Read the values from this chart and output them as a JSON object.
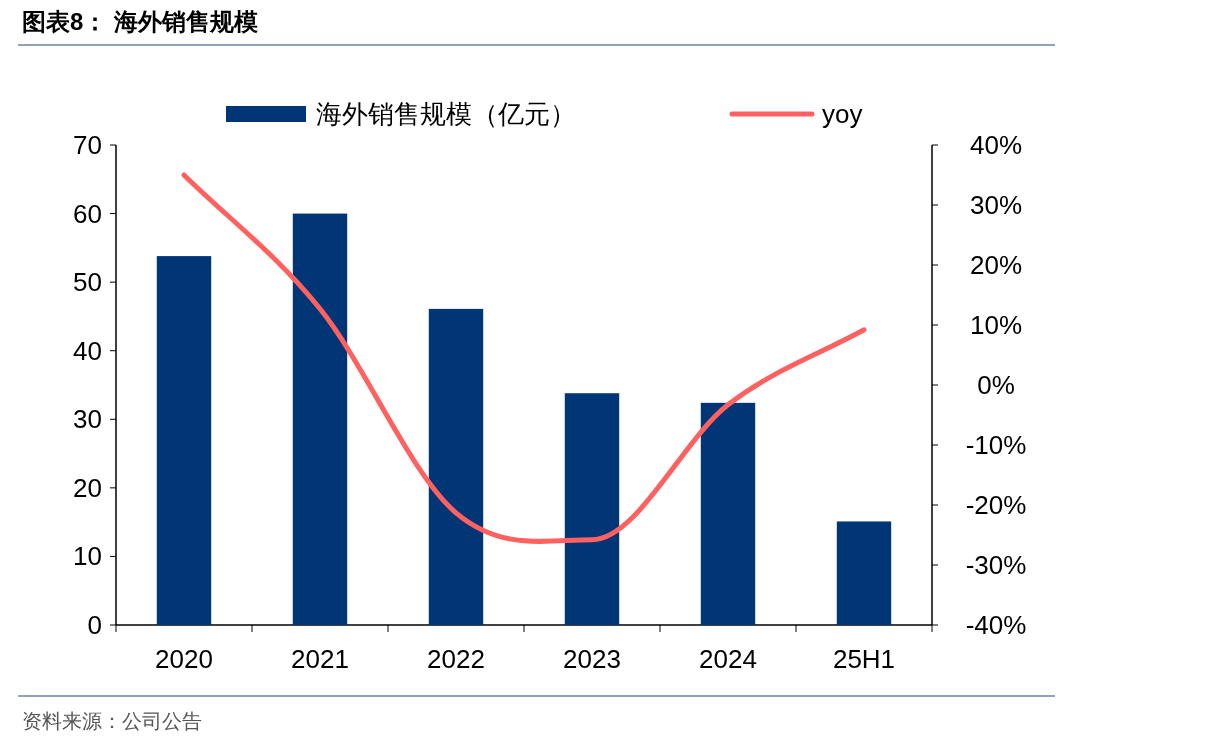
{
  "chart_data": {
    "type": "bar",
    "title": "图表8： 海外销售规模",
    "categories": [
      "2020",
      "2021",
      "2022",
      "2023",
      "2024",
      "25H1"
    ],
    "series": [
      {
        "name": "海外销售规模（亿元）",
        "color": "#003676",
        "values": [
          53.8,
          60,
          46.1,
          33.8,
          32.4,
          15.1
        ]
      },
      {
        "name": "yoy",
        "type": "line",
        "axis": "y2",
        "color": "#ff6161",
        "values": [
          35,
          12.7,
          -21.3,
          -25.8,
          -3.3,
          9.2
        ]
      }
    ],
    "ylim": [
      0,
      70
    ],
    "yticks": [
      0,
      10,
      20,
      30,
      40,
      50,
      60,
      70
    ],
    "y2lim": [
      -40,
      40
    ],
    "y2ticks": [
      {
        "value": -40,
        "label": "-40%"
      },
      {
        "value": -30,
        "label": "-30%"
      },
      {
        "value": -20,
        "label": "-20%"
      },
      {
        "value": -10,
        "label": "-10%"
      },
      {
        "value": 0,
        "label": "0%"
      },
      {
        "value": 10,
        "label": "10%"
      },
      {
        "value": 20,
        "label": "20%"
      },
      {
        "value": 30,
        "label": "30%"
      },
      {
        "value": 40,
        "label": "40%"
      }
    ],
    "legend": "top",
    "grid": false,
    "line_style": "solid",
    "annotations": [
      "资料来源：公司公告"
    ]
  }
}
